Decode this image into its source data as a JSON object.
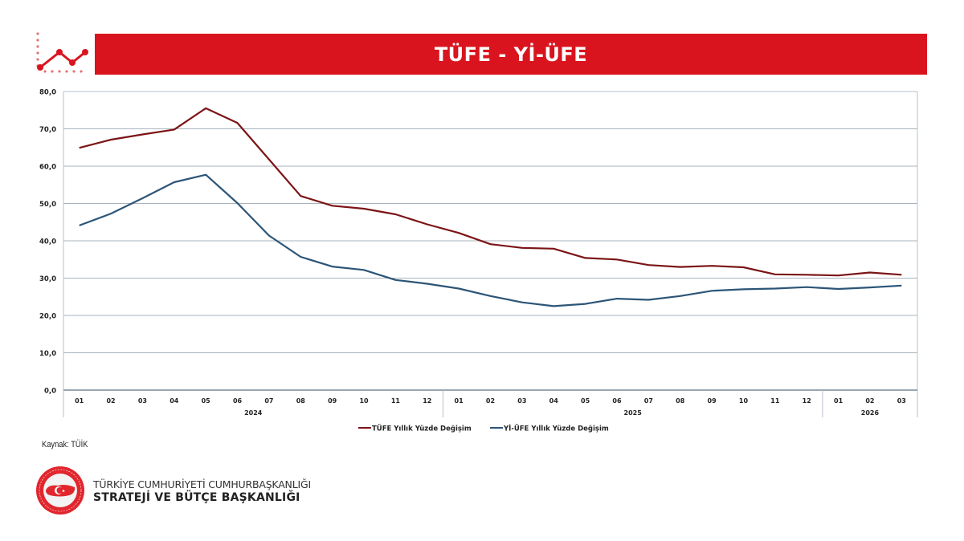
{
  "header": {
    "title": "TÜFE - Yİ-ÜFE",
    "icon": "line-chart-icon",
    "accent_color": "#d9141e"
  },
  "chart_data": {
    "type": "line",
    "title": "TÜFE - Yİ-ÜFE",
    "xlabel": "",
    "ylabel": "",
    "ylim": [
      0,
      80
    ],
    "y_ticks": [
      "0,0",
      "10,0",
      "20,0",
      "30,0",
      "40,0",
      "50,0",
      "60,0",
      "70,0",
      "80,0"
    ],
    "grid": true,
    "legend_position": "bottom",
    "categories": [
      "01",
      "02",
      "03",
      "04",
      "05",
      "06",
      "07",
      "08",
      "09",
      "10",
      "11",
      "12",
      "01",
      "02",
      "03",
      "04",
      "05",
      "06",
      "07",
      "08",
      "09",
      "10",
      "11",
      "12",
      "01",
      "02",
      "03"
    ],
    "year_groups": [
      {
        "label": "2024",
        "span": 12
      },
      {
        "label": "2025",
        "span": 12
      },
      {
        "label": "2026",
        "span": 3
      }
    ],
    "series": [
      {
        "name": "TÜFE Yıllık Yüzde Değişim",
        "color": "#7b1416",
        "values": [
          64.9,
          67.1,
          68.5,
          69.8,
          75.5,
          71.6,
          61.8,
          52.0,
          49.4,
          48.6,
          47.1,
          44.4,
          42.1,
          39.1,
          38.1,
          37.9,
          35.4,
          35.0,
          33.5,
          33.0,
          33.3,
          32.9,
          31.0,
          30.9,
          30.7,
          31.5,
          30.9
        ]
      },
      {
        "name": "Yİ-ÜFE Yıllık Yüzde Değişim",
        "color": "#2c5577",
        "values": [
          44.1,
          47.3,
          51.4,
          55.7,
          57.7,
          50.1,
          41.4,
          35.7,
          33.1,
          32.2,
          29.5,
          28.5,
          27.2,
          25.2,
          23.5,
          22.5,
          23.1,
          24.5,
          24.2,
          25.2,
          26.6,
          27.0,
          27.2,
          27.6,
          27.1,
          27.5,
          28.0
        ]
      }
    ]
  },
  "footer": {
    "source": "Kaynak: TÜİK",
    "org_line1": "TÜRKİYE CUMHURİYETİ CUMHURBAŞKANLIĞI",
    "org_line2": "STRATEJİ VE BÜTÇE BAŞKANLIĞI",
    "seal_icon": "institution-seal-icon"
  }
}
